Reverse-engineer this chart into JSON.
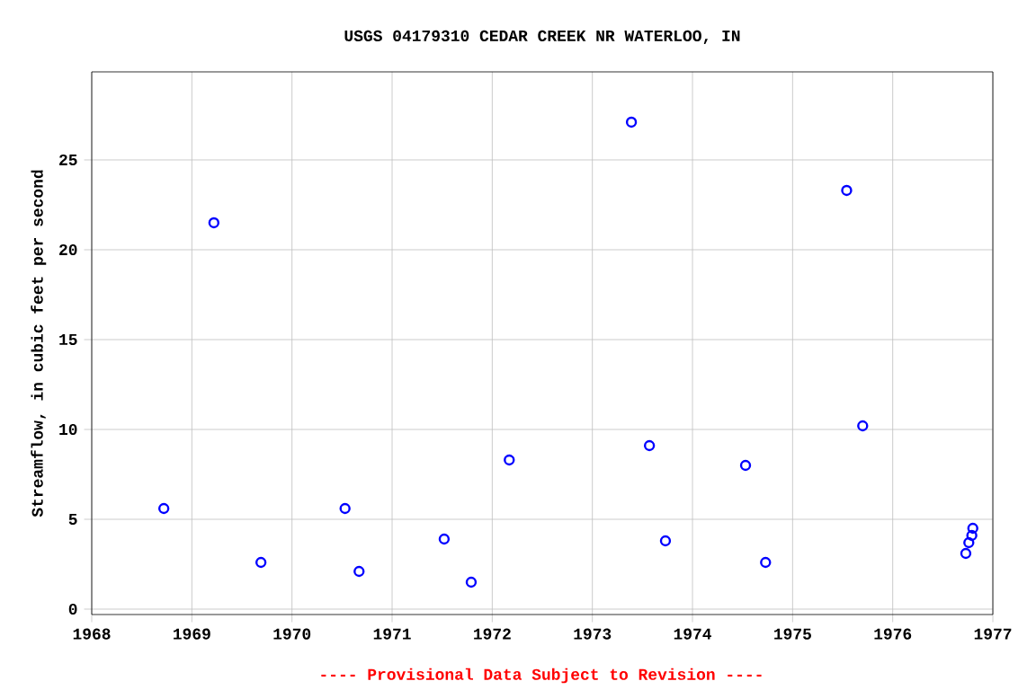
{
  "chart_data": {
    "type": "scatter",
    "title": "USGS 04179310 CEDAR CREEK NR WATERLOO, IN",
    "ylabel": "Streamflow, in cubic feet per second",
    "annotations": [
      "---- Provisional Data Subject to Revision ----"
    ],
    "x": [
      1968.72,
      1969.22,
      1969.69,
      1970.53,
      1970.67,
      1971.52,
      1971.79,
      1972.17,
      1973.39,
      1973.57,
      1973.73,
      1974.53,
      1974.73,
      1975.54,
      1975.7,
      1976.73,
      1976.76,
      1976.79,
      1976.8
    ],
    "series": [
      {
        "color": "#0000ff",
        "values": [
          5.6,
          21.5,
          2.6,
          5.6,
          2.1,
          3.9,
          1.5,
          8.3,
          27.1,
          9.1,
          3.8,
          8.0,
          2.6,
          23.3,
          10.2,
          3.1,
          3.7,
          4.1,
          4.5
        ]
      }
    ],
    "xlim": [
      1968,
      1977
    ],
    "xticks": [
      1968,
      1969,
      1970,
      1971,
      1972,
      1973,
      1974,
      1975,
      1976,
      1977
    ],
    "ylim": [
      -0.3,
      29.9
    ],
    "yticks": [
      0,
      5,
      10,
      15,
      20,
      25
    ],
    "grid": true,
    "marker": "circle"
  }
}
